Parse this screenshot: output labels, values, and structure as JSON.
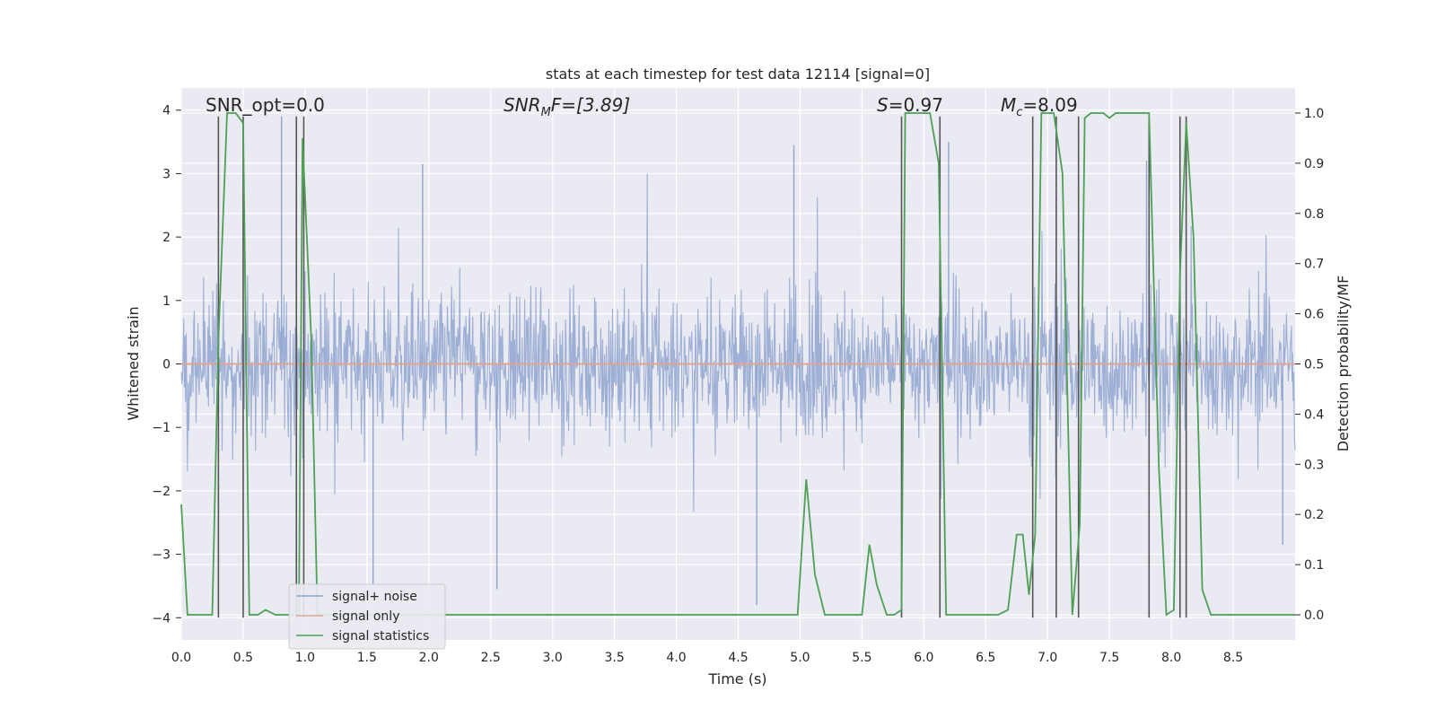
{
  "chart_data": {
    "type": "line",
    "title": "stats at each timestep for test data 12114 [signal=0]",
    "xlabel": "Time (s)",
    "ylabel_left": "Whitened strain",
    "ylabel_right": "Detection probability/MF",
    "xlim": [
      0,
      9.0
    ],
    "ylim_left": [
      -4.35,
      4.35
    ],
    "ylim_right": [
      -0.05,
      1.05
    ],
    "x_ticks": [
      0.0,
      0.5,
      1.0,
      1.5,
      2.0,
      2.5,
      3.0,
      3.5,
      4.0,
      4.5,
      5.0,
      5.5,
      6.0,
      6.5,
      7.0,
      7.5,
      8.0,
      8.5
    ],
    "x_tick_labels": [
      "0.0",
      "0.5",
      "1.0",
      "1.5",
      "2.0",
      "2.5",
      "3.0",
      "3.5",
      "4.0",
      "4.5",
      "5.0",
      "5.5",
      "6.0",
      "6.5",
      "7.0",
      "7.5",
      "8.0",
      "8.5"
    ],
    "y_left_ticks": [
      4,
      3,
      2,
      1,
      0,
      -1,
      -2,
      -3,
      -4
    ],
    "y_left_tick_labels": [
      "4",
      "3",
      "2",
      "1",
      "0",
      "−1",
      "−2",
      "−3",
      "−4"
    ],
    "y_right_ticks": [
      1.0,
      0.9,
      0.8,
      0.7,
      0.6,
      0.5,
      0.4,
      0.3,
      0.2,
      0.1,
      0.0
    ],
    "y_right_tick_labels": [
      "1.0",
      "0.9",
      "0.8",
      "0.7",
      "0.6",
      "0.5",
      "0.4",
      "0.3",
      "0.2",
      "0.1",
      "0.0"
    ],
    "annotations": {
      "snr_opt": "SNR_opt=0.0",
      "snr_mf_main": "SNR",
      "snr_mf_sub": "M",
      "snr_mf_rest": "F=[3.89]",
      "s_sym": "S",
      "s_value": "=0.97",
      "mc_main": "M",
      "mc_sub": "c",
      "mc_value": "=8.09"
    },
    "legend": {
      "position": "lower-left",
      "entries": [
        {
          "label": "signal+ noise",
          "color": "#8fa5d0"
        },
        {
          "label": "signal only",
          "color": "#e0a590"
        },
        {
          "label": "signal statistics",
          "color": "#4f9f55"
        }
      ]
    },
    "series": [
      {
        "name": "signal+ noise",
        "axis": "left",
        "style": "dense-noise",
        "color": "#8fa5d0",
        "typical_envelope": [
          -1.6,
          1.9
        ],
        "peak_spikes": [
          {
            "x": 0.81,
            "y": 3.9
          },
          {
            "x": 1.95,
            "y": 3.15
          },
          {
            "x": 4.95,
            "y": 3.45
          },
          {
            "x": 6.2,
            "y": 3.5
          },
          {
            "x": 7.8,
            "y": 3.2
          },
          {
            "x": 1.55,
            "y": -3.5
          },
          {
            "x": 2.55,
            "y": -3.55
          },
          {
            "x": 4.65,
            "y": -3.8
          },
          {
            "x": 8.9,
            "y": -2.85
          }
        ]
      },
      {
        "name": "signal only",
        "axis": "left",
        "color": "#e0a590",
        "x": [
          0,
          9.0
        ],
        "y": [
          0,
          0
        ]
      },
      {
        "name": "signal statistics",
        "axis": "right",
        "color": "#4f9f55",
        "x": [
          0.0,
          0.05,
          0.25,
          0.3,
          0.37,
          0.44,
          0.5,
          0.55,
          0.62,
          0.68,
          0.76,
          0.95,
          0.98,
          1.05,
          1.1,
          4.98,
          5.05,
          5.12,
          5.2,
          5.5,
          5.56,
          5.62,
          5.7,
          5.76,
          5.82,
          5.85,
          5.9,
          6.05,
          6.12,
          6.18,
          6.3,
          6.6,
          6.68,
          6.75,
          6.8,
          6.85,
          6.9,
          6.95,
          7.0,
          7.05,
          7.12,
          7.2,
          7.26,
          7.3,
          7.35,
          7.45,
          7.5,
          7.55,
          7.65,
          7.82,
          7.9,
          7.96,
          8.02,
          8.07,
          8.12,
          8.18,
          8.25,
          8.32,
          8.4,
          9.0
        ],
        "y": [
          0.22,
          0.0,
          0.0,
          0.55,
          1.0,
          1.0,
          0.98,
          0.0,
          0.0,
          0.01,
          0.0,
          0.0,
          0.95,
          0.55,
          0.0,
          0.0,
          0.27,
          0.08,
          0.0,
          0.0,
          0.14,
          0.06,
          0.0,
          0.0,
          0.01,
          1.0,
          1.0,
          1.0,
          0.9,
          0.0,
          0.0,
          0.0,
          0.01,
          0.16,
          0.16,
          0.04,
          0.16,
          1.0,
          1.0,
          1.0,
          0.88,
          0.0,
          0.18,
          0.99,
          1.0,
          1.0,
          0.99,
          1.0,
          1.0,
          1.0,
          0.29,
          0.0,
          0.01,
          0.68,
          0.98,
          0.75,
          0.05,
          0.0,
          0.0,
          0.0
        ]
      }
    ],
    "vertical_markers": {
      "color": "#555555",
      "top_value": 3.9,
      "bottom_value": -4.0,
      "x": [
        0.3,
        0.5,
        0.93,
        0.99,
        5.82,
        6.13,
        6.88,
        7.07,
        7.25,
        7.82,
        8.07,
        8.12
      ]
    }
  }
}
